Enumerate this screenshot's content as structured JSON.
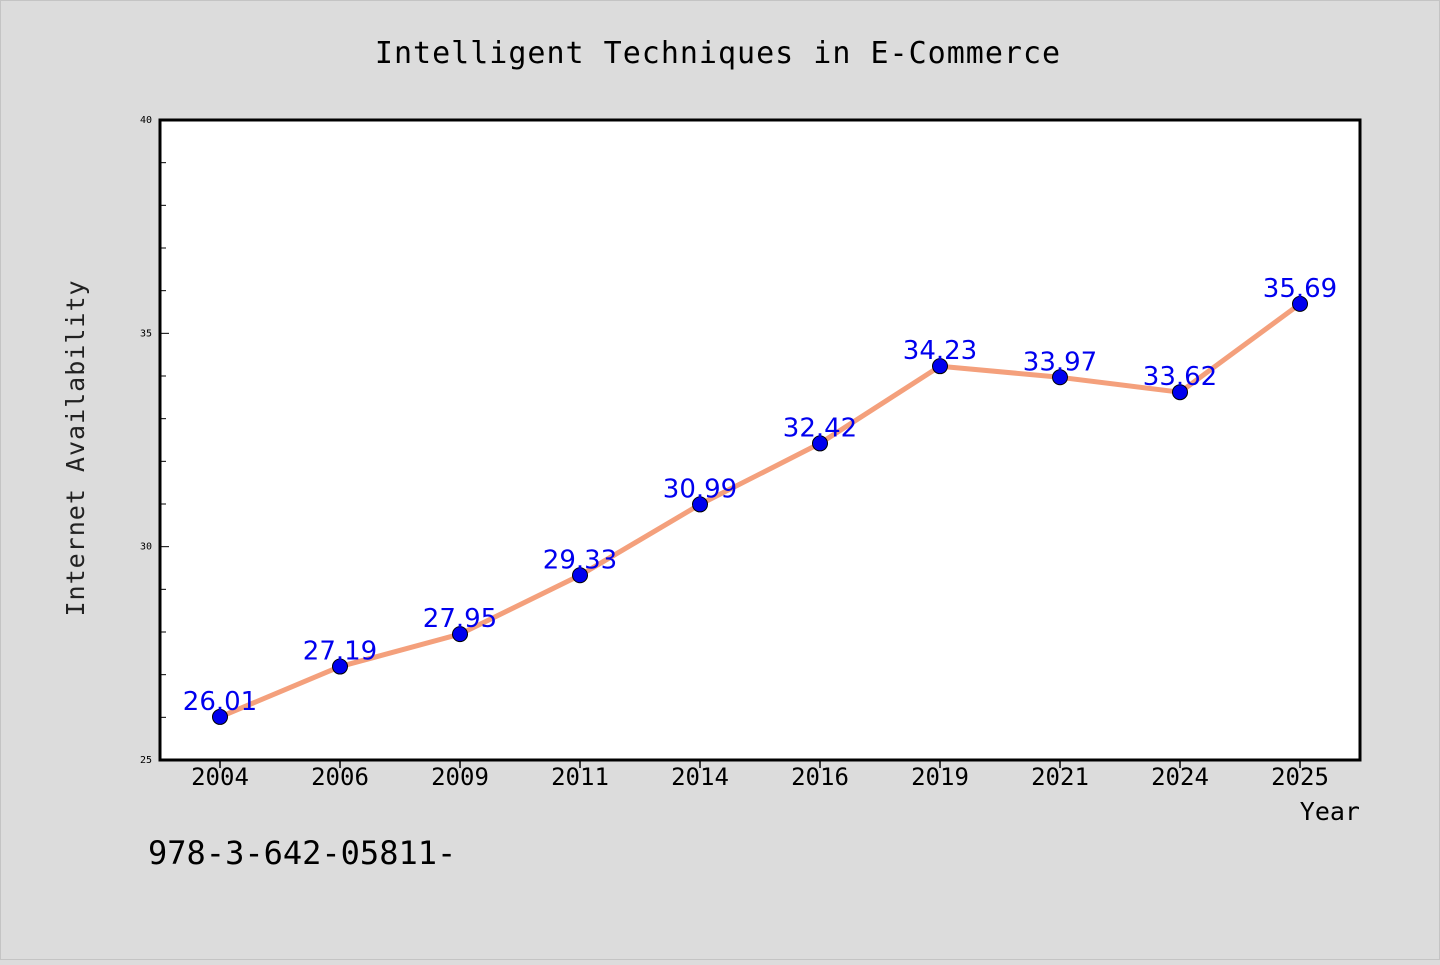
{
  "chart_data": {
    "type": "line",
    "title": "Intelligent Techniques in E-Commerce",
    "xlabel": "Year",
    "ylabel": "Internet Availability",
    "categories": [
      "2004",
      "2006",
      "2009",
      "2011",
      "2014",
      "2016",
      "2019",
      "2021",
      "2024",
      "2025"
    ],
    "series": [
      {
        "values": [
          26.01,
          27.19,
          27.95,
          29.33,
          30.99,
          32.42,
          34.23,
          33.97,
          33.62,
          35.69
        ]
      }
    ],
    "data_labels": [
      "26.01",
      "27.19",
      "27.95",
      "29.33",
      "30.99",
      "32.42",
      "34.23",
      "33.97",
      "33.62",
      "35.69"
    ],
    "ylim": [
      25,
      40
    ],
    "y_ticks": [
      25,
      30,
      35,
      40
    ],
    "y_tick_labels": [
      "25",
      "30",
      "35",
      "40"
    ],
    "grid": false,
    "colors": {
      "line": "#f4a07c",
      "marker": "#0000ee",
      "label": "#0000ee",
      "background": "#dcdcdc",
      "plot_background": "#ffffff"
    }
  },
  "footer_text": "978-3-642-05811-"
}
